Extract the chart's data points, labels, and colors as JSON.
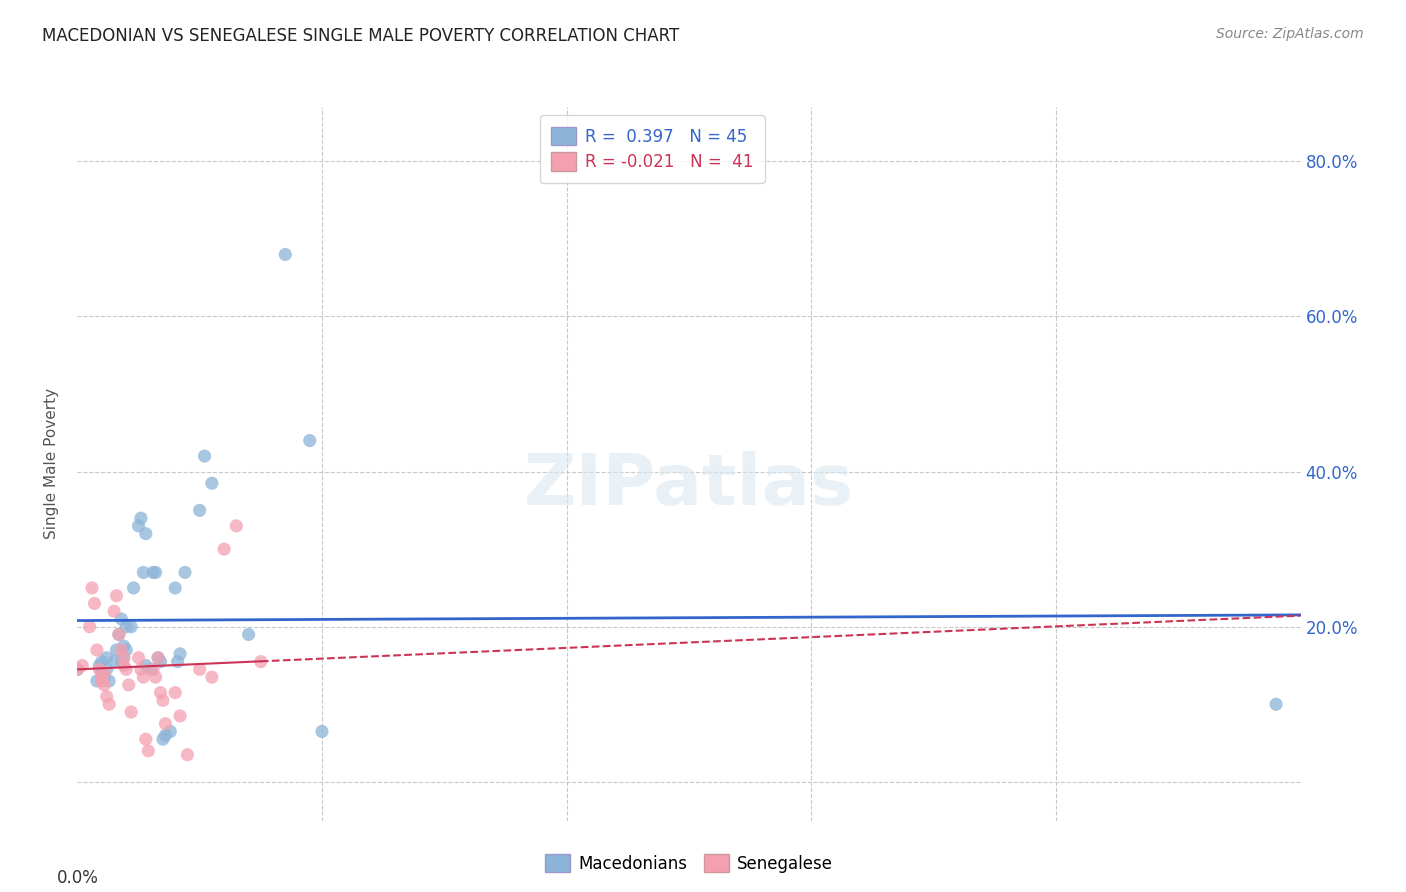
{
  "title": "MACEDONIAN VS SENEGALESE SINGLE MALE POVERTY CORRELATION CHART",
  "source": "Source: ZipAtlas.com",
  "ylabel": "Single Male Poverty",
  "xlim": [
    0.0,
    0.05
  ],
  "ylim": [
    -0.05,
    0.87
  ],
  "yticks": [
    0.0,
    0.2,
    0.4,
    0.6,
    0.8
  ],
  "ytick_labels": [
    "",
    "20.0%",
    "40.0%",
    "60.0%",
    "80.0%"
  ],
  "background_color": "#ffffff",
  "grid_color": "#c8c8c8",
  "watermark": "ZIPatlas",
  "legend_R1": "R =  0.397",
  "legend_N1": "N = 45",
  "legend_R2": "R = -0.021",
  "legend_N2": "N =  41",
  "blue_scatter_color": "#8cb4d8",
  "pink_scatter_color": "#f4a0b0",
  "blue_line_color": "#3366cc",
  "pink_line_color": "#cc3355",
  "macedonians_x": [
    0.0,
    0.0008,
    0.0009,
    0.001,
    0.001,
    0.0011,
    0.0012,
    0.0012,
    0.0013,
    0.0015,
    0.0016,
    0.0017,
    0.0018,
    0.0018,
    0.0019,
    0.0019,
    0.002,
    0.002,
    0.0022,
    0.0023,
    0.0025,
    0.0026,
    0.0027,
    0.0028,
    0.0028,
    0.003,
    0.0031,
    0.0032,
    0.0033,
    0.0034,
    0.0035,
    0.0036,
    0.0038,
    0.004,
    0.0041,
    0.0042,
    0.0044,
    0.005,
    0.0052,
    0.0055,
    0.007,
    0.0085,
    0.0095,
    0.01,
    0.049
  ],
  "macedonians_y": [
    0.145,
    0.13,
    0.15,
    0.14,
    0.155,
    0.135,
    0.16,
    0.145,
    0.13,
    0.155,
    0.17,
    0.19,
    0.155,
    0.21,
    0.16,
    0.175,
    0.2,
    0.17,
    0.2,
    0.25,
    0.33,
    0.34,
    0.27,
    0.32,
    0.15,
    0.145,
    0.27,
    0.27,
    0.16,
    0.155,
    0.055,
    0.06,
    0.065,
    0.25,
    0.155,
    0.165,
    0.27,
    0.35,
    0.42,
    0.385,
    0.19,
    0.68,
    0.44,
    0.065,
    0.1
  ],
  "senegalese_x": [
    0.0,
    0.0002,
    0.0005,
    0.0006,
    0.0007,
    0.0008,
    0.0009,
    0.001,
    0.001,
    0.0011,
    0.0011,
    0.0012,
    0.0013,
    0.0015,
    0.0016,
    0.0017,
    0.0018,
    0.0019,
    0.0019,
    0.002,
    0.0021,
    0.0022,
    0.0025,
    0.0026,
    0.0027,
    0.0028,
    0.0029,
    0.0031,
    0.0032,
    0.0033,
    0.0034,
    0.0035,
    0.0036,
    0.004,
    0.0042,
    0.0045,
    0.005,
    0.0055,
    0.006,
    0.0065,
    0.0075
  ],
  "senegalese_y": [
    0.145,
    0.15,
    0.2,
    0.25,
    0.23,
    0.17,
    0.145,
    0.135,
    0.13,
    0.14,
    0.125,
    0.11,
    0.1,
    0.22,
    0.24,
    0.19,
    0.17,
    0.16,
    0.15,
    0.145,
    0.125,
    0.09,
    0.16,
    0.145,
    0.135,
    0.055,
    0.04,
    0.145,
    0.135,
    0.16,
    0.115,
    0.105,
    0.075,
    0.115,
    0.085,
    0.035,
    0.145,
    0.135,
    0.3,
    0.33,
    0.155
  ]
}
